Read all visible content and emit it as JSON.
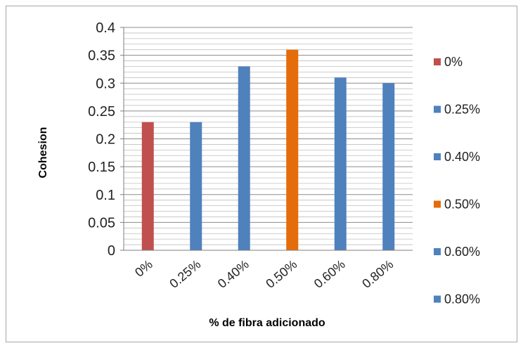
{
  "chart_data": {
    "type": "bar",
    "categories": [
      "0%",
      "0.25%",
      "0.40%",
      "0.50%",
      "0.60%",
      "0.80%"
    ],
    "values": [
      0.23,
      0.23,
      0.33,
      0.36,
      0.31,
      0.3
    ],
    "colors": [
      "#c0504d",
      "#4f81bd",
      "#4f81bd",
      "#e46c0a",
      "#4f81bd",
      "#4f81bd"
    ],
    "title": "",
    "xlabel": "% de fibra adicionado",
    "ylabel": "Cohesion",
    "ylim": [
      0,
      0.4
    ],
    "yticks": [
      "0",
      "0.05",
      "0.1",
      "0.15",
      "0.2",
      "0.25",
      "0.3",
      "0.35",
      "0.4"
    ],
    "minor_grid_step": 0.01,
    "grid": true,
    "legend": {
      "position": "right",
      "entries": [
        {
          "label": "0%",
          "color": "#c0504d"
        },
        {
          "label": "0.25%",
          "color": "#4f81bd"
        },
        {
          "label": "0.40%",
          "color": "#4f81bd"
        },
        {
          "label": "0.50%",
          "color": "#e46c0a"
        },
        {
          "label": "0.60%",
          "color": "#4f81bd"
        },
        {
          "label": "0.80%",
          "color": "#4f81bd"
        }
      ]
    }
  }
}
